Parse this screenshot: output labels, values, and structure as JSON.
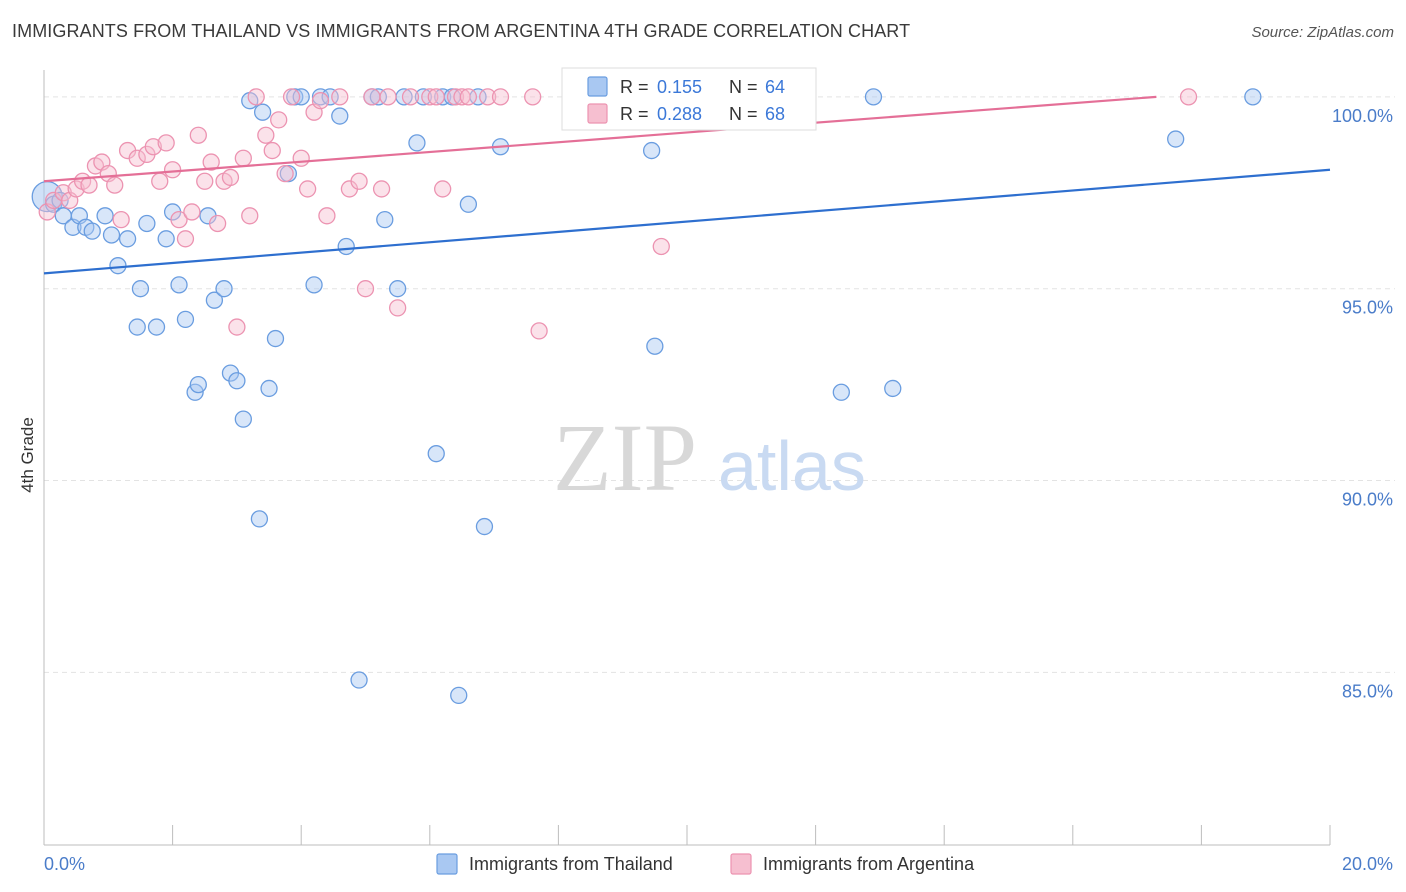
{
  "header": {
    "title": "IMMIGRANTS FROM THAILAND VS IMMIGRANTS FROM ARGENTINA 4TH GRADE CORRELATION CHART",
    "source": "Source: ZipAtlas.com"
  },
  "watermark": {
    "zip": "ZIP",
    "atlas": "atlas"
  },
  "colors": {
    "thailand_fill": "#a9c8f2",
    "thailand_stroke": "#6a9de0",
    "thailand_line": "#2e6fcf",
    "argentina_fill": "#f6bfd0",
    "argentina_stroke": "#ec93b1",
    "argentina_line": "#e46f97",
    "grid": "#e3e3e3",
    "accent_text": "#3b78d8"
  },
  "stats": [
    {
      "r_label": "R =",
      "r_value": "0.155",
      "n_label": "N =",
      "n_value": "64"
    },
    {
      "r_label": "R =",
      "r_value": "0.288",
      "n_label": "N =",
      "n_value": "68"
    }
  ],
  "chart_data": {
    "type": "scatter",
    "title": "IMMIGRANTS FROM THAILAND VS IMMIGRANTS FROM ARGENTINA 4TH GRADE CORRELATION CHART",
    "xlabel": "",
    "ylabel": "4th Grade",
    "xlim": [
      0,
      20
    ],
    "ylim": [
      80.5,
      100.7
    ],
    "x_ticks": [
      "0.0%",
      "20.0%"
    ],
    "y_ticks": [
      {
        "value": 100,
        "label": "100.0%"
      },
      {
        "value": 95,
        "label": "95.0%"
      },
      {
        "value": 90,
        "label": "90.0%"
      },
      {
        "value": 85,
        "label": "85.0%"
      }
    ],
    "grid": true,
    "legend_position": "bottom",
    "series": [
      {
        "name": "Immigrants from Thailand",
        "r": 0.155,
        "n": 64,
        "trend": {
          "x": [
            0,
            20
          ],
          "y": [
            95.4,
            98.1
          ]
        },
        "points": [
          [
            0.05,
            97.4
          ],
          [
            0.15,
            97.2
          ],
          [
            0.25,
            97.3
          ],
          [
            0.3,
            96.9
          ],
          [
            0.45,
            96.6
          ],
          [
            0.55,
            96.9
          ],
          [
            0.65,
            96.6
          ],
          [
            0.75,
            96.5
          ],
          [
            0.95,
            96.9
          ],
          [
            1.05,
            96.4
          ],
          [
            1.15,
            95.6
          ],
          [
            1.3,
            96.3
          ],
          [
            1.5,
            95.0
          ],
          [
            1.6,
            96.7
          ],
          [
            1.45,
            94.0
          ],
          [
            1.75,
            94.0
          ],
          [
            1.9,
            96.3
          ],
          [
            2.0,
            97.0
          ],
          [
            2.1,
            95.1
          ],
          [
            2.2,
            94.2
          ],
          [
            2.35,
            92.3
          ],
          [
            2.4,
            92.5
          ],
          [
            2.55,
            96.9
          ],
          [
            2.65,
            94.7
          ],
          [
            2.8,
            95.0
          ],
          [
            2.9,
            92.8
          ],
          [
            3.0,
            92.6
          ],
          [
            3.1,
            91.6
          ],
          [
            3.2,
            99.9
          ],
          [
            3.4,
            99.6
          ],
          [
            3.35,
            89.0
          ],
          [
            3.5,
            92.4
          ],
          [
            3.6,
            93.7
          ],
          [
            3.8,
            98.0
          ],
          [
            3.9,
            100.0
          ],
          [
            4.0,
            100.0
          ],
          [
            4.2,
            95.1
          ],
          [
            4.3,
            100.0
          ],
          [
            4.45,
            100.0
          ],
          [
            4.6,
            99.5
          ],
          [
            4.7,
            96.1
          ],
          [
            4.9,
            84.8
          ],
          [
            5.1,
            100.0
          ],
          [
            5.2,
            100.0
          ],
          [
            5.3,
            96.8
          ],
          [
            5.5,
            95.0
          ],
          [
            5.6,
            100.0
          ],
          [
            5.8,
            98.8
          ],
          [
            5.9,
            100.0
          ],
          [
            6.1,
            90.7
          ],
          [
            6.2,
            100.0
          ],
          [
            6.35,
            100.0
          ],
          [
            6.45,
            84.4
          ],
          [
            6.6,
            97.2
          ],
          [
            6.75,
            100.0
          ],
          [
            6.85,
            88.8
          ],
          [
            7.1,
            98.7
          ],
          [
            9.45,
            98.6
          ],
          [
            9.5,
            93.5
          ],
          [
            12.4,
            92.3
          ],
          [
            12.9,
            100.0
          ],
          [
            13.2,
            92.4
          ],
          [
            17.6,
            98.9
          ],
          [
            18.8,
            100.0
          ]
        ]
      },
      {
        "name": "Immigrants from Argentina",
        "r": 0.288,
        "n": 68,
        "trend": {
          "x": [
            0,
            17.3
          ],
          "y": [
            97.8,
            100.0
          ]
        },
        "points": [
          [
            0.05,
            97.0
          ],
          [
            0.15,
            97.3
          ],
          [
            0.3,
            97.5
          ],
          [
            0.4,
            97.3
          ],
          [
            0.5,
            97.6
          ],
          [
            0.6,
            97.8
          ],
          [
            0.7,
            97.7
          ],
          [
            0.8,
            98.2
          ],
          [
            0.9,
            98.3
          ],
          [
            1.0,
            98.0
          ],
          [
            1.1,
            97.7
          ],
          [
            1.2,
            96.8
          ],
          [
            1.3,
            98.6
          ],
          [
            1.45,
            98.4
          ],
          [
            1.6,
            98.5
          ],
          [
            1.7,
            98.7
          ],
          [
            1.8,
            97.8
          ],
          [
            1.9,
            98.8
          ],
          [
            2.0,
            98.1
          ],
          [
            2.1,
            96.8
          ],
          [
            2.2,
            96.3
          ],
          [
            2.3,
            97.0
          ],
          [
            2.4,
            99.0
          ],
          [
            2.5,
            97.8
          ],
          [
            2.6,
            98.3
          ],
          [
            2.7,
            96.7
          ],
          [
            2.8,
            97.8
          ],
          [
            2.9,
            97.9
          ],
          [
            3.0,
            94.0
          ],
          [
            3.1,
            98.4
          ],
          [
            3.2,
            96.9
          ],
          [
            3.3,
            100.0
          ],
          [
            3.45,
            99.0
          ],
          [
            3.55,
            98.6
          ],
          [
            3.65,
            99.4
          ],
          [
            3.75,
            98.0
          ],
          [
            3.85,
            100.0
          ],
          [
            4.0,
            98.4
          ],
          [
            4.1,
            97.6
          ],
          [
            4.2,
            99.6
          ],
          [
            4.3,
            99.9
          ],
          [
            4.4,
            96.9
          ],
          [
            4.6,
            100.0
          ],
          [
            4.75,
            97.6
          ],
          [
            4.9,
            97.8
          ],
          [
            5.0,
            95.0
          ],
          [
            5.1,
            100.0
          ],
          [
            5.25,
            97.6
          ],
          [
            5.35,
            100.0
          ],
          [
            5.5,
            94.5
          ],
          [
            5.7,
            100.0
          ],
          [
            6.0,
            100.0
          ],
          [
            6.1,
            100.0
          ],
          [
            6.2,
            97.6
          ],
          [
            6.4,
            100.0
          ],
          [
            6.5,
            100.0
          ],
          [
            6.6,
            100.0
          ],
          [
            6.9,
            100.0
          ],
          [
            7.1,
            100.0
          ],
          [
            7.6,
            100.0
          ],
          [
            7.7,
            93.9
          ],
          [
            8.2,
            100.0
          ],
          [
            8.5,
            100.0
          ],
          [
            9.6,
            96.1
          ],
          [
            10.1,
            100.0
          ],
          [
            10.3,
            99.4
          ],
          [
            11.6,
            100.0
          ],
          [
            17.8,
            100.0
          ]
        ]
      }
    ]
  }
}
